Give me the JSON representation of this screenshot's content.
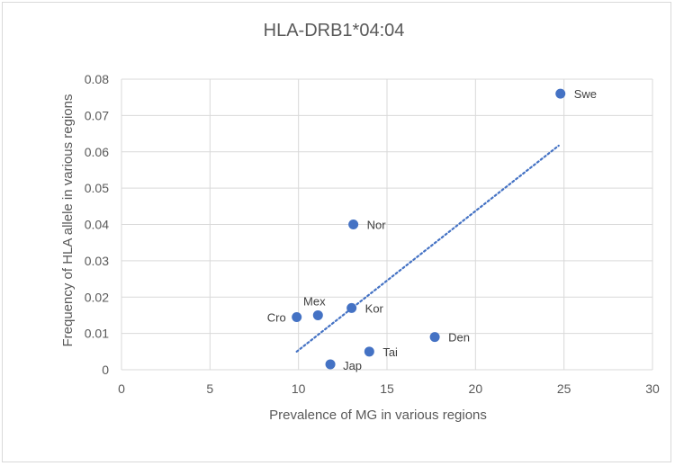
{
  "chart_data": {
    "type": "scatter",
    "title": "HLA-DRB1*04:04",
    "xlabel": "Prevalence of MG in various regions",
    "ylabel": "Frequency  of HLA allele in various regions",
    "xlim": [
      0,
      30
    ],
    "ylim": [
      0,
      0.08
    ],
    "x_ticks": [
      "0",
      "5",
      "10",
      "15",
      "20",
      "25",
      "30"
    ],
    "y_ticks": [
      "0",
      "0.01",
      "0.02",
      "0.03",
      "0.04",
      "0.05",
      "0.06",
      "0.07",
      "0.08"
    ],
    "grid": true,
    "marker_color": "#4472C4",
    "trendline": {
      "type": "linear",
      "style": "dotted",
      "color": "#4472C4",
      "x_start": 9.9,
      "y_start": 0.005,
      "x_end": 24.7,
      "y_end": 0.0617
    },
    "points": [
      {
        "label": "Swe",
        "x": 24.8,
        "y": 0.076
      },
      {
        "label": "Nor",
        "x": 13.1,
        "y": 0.04
      },
      {
        "label": "Mex",
        "x": 11.1,
        "y": 0.015
      },
      {
        "label": "Cro",
        "x": 9.9,
        "y": 0.0145
      },
      {
        "label": "Kor",
        "x": 13.0,
        "y": 0.017
      },
      {
        "label": "Den",
        "x": 17.7,
        "y": 0.009
      },
      {
        "label": "Tai",
        "x": 14.0,
        "y": 0.005
      },
      {
        "label": "Jap",
        "x": 11.8,
        "y": 0.0015
      }
    ]
  }
}
